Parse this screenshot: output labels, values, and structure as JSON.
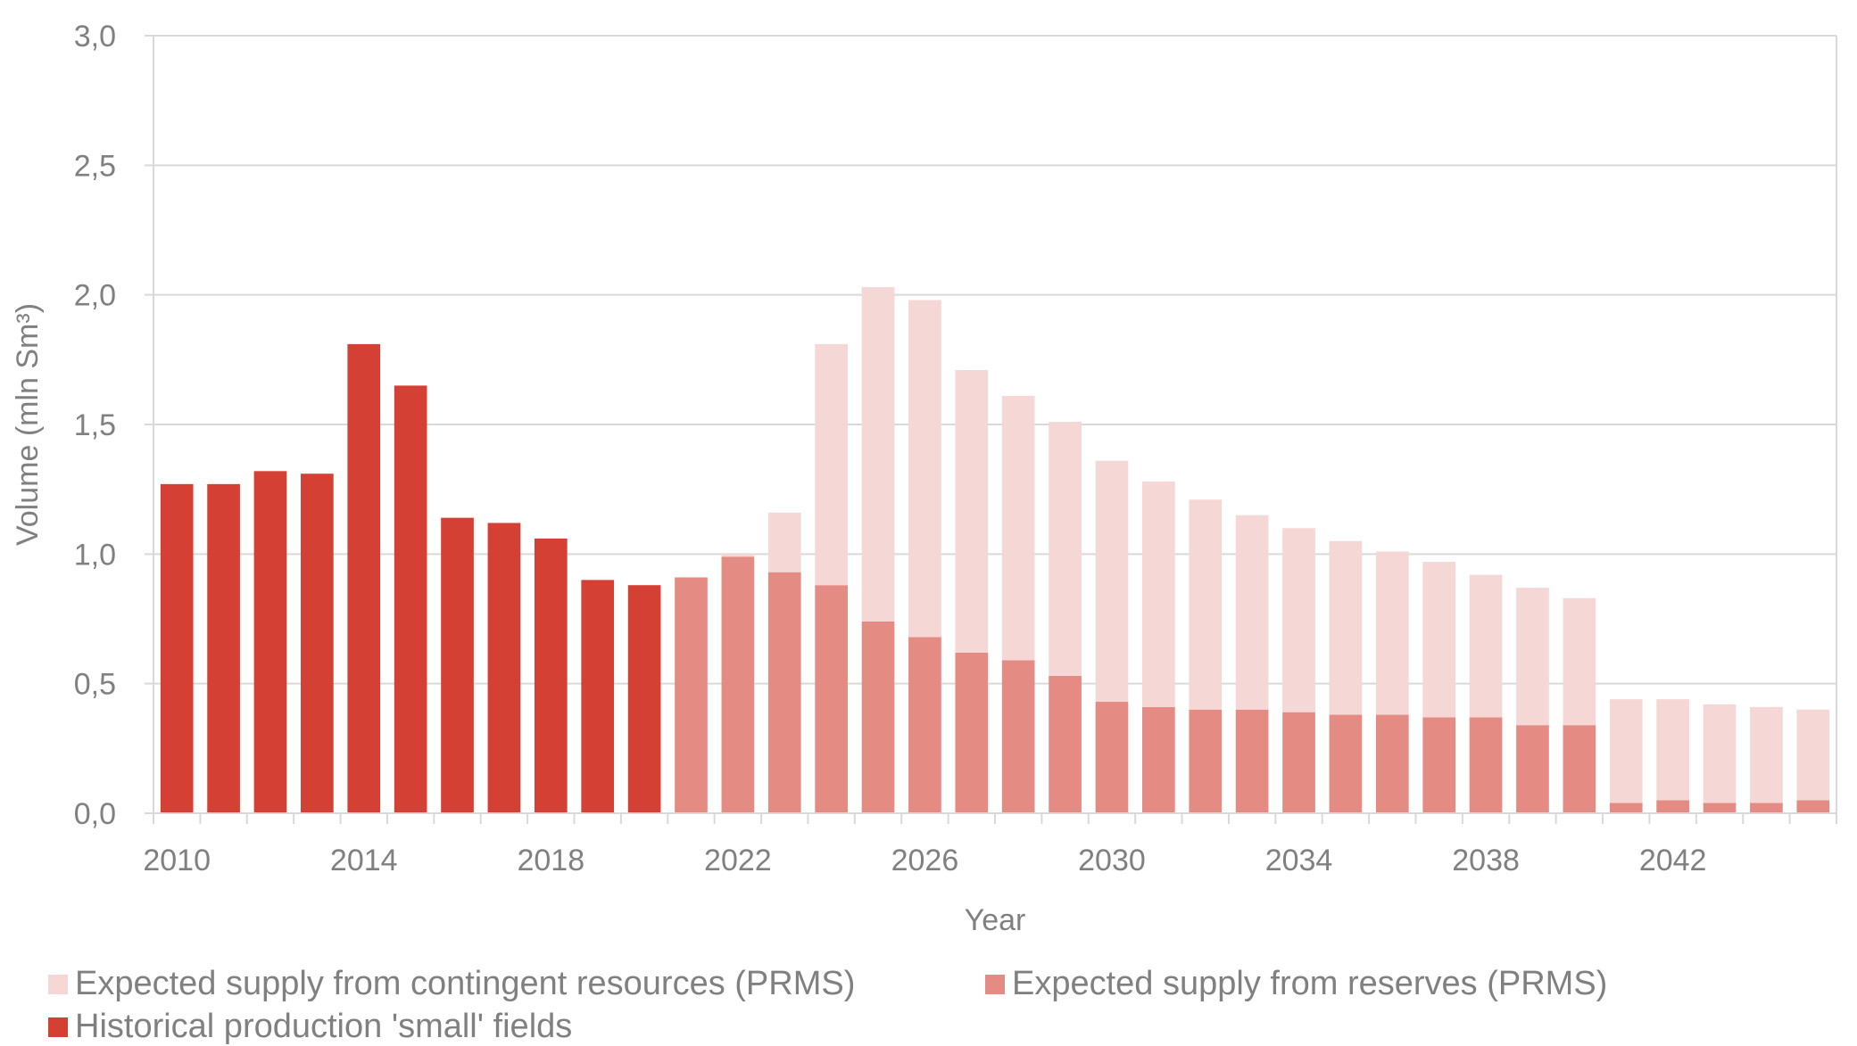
{
  "chart_data": {
    "type": "bar",
    "stacked": true,
    "title": "",
    "xlabel": "Year",
    "ylabel": "Volume (mln Sm³)",
    "ylim": [
      0,
      3.0
    ],
    "yticks": [
      "0,0",
      "0,5",
      "1,0",
      "1,5",
      "2,0",
      "2,5",
      "3,0"
    ],
    "ytick_values": [
      0,
      0.5,
      1.0,
      1.5,
      2.0,
      2.5,
      3.0
    ],
    "xticks": [
      "2010",
      "2014",
      "2018",
      "2022",
      "2026",
      "2030",
      "2034",
      "2038",
      "2042"
    ],
    "grid": true,
    "legend_position": "bottom",
    "categories": [
      "2010",
      "2011",
      "2012",
      "2013",
      "2014",
      "2015",
      "2016",
      "2017",
      "2018",
      "2019",
      "2020",
      "2021",
      "2022",
      "2023",
      "2024",
      "2025",
      "2026",
      "2027",
      "2028",
      "2029",
      "2030",
      "2031",
      "2032",
      "2033",
      "2034",
      "2035",
      "2036",
      "2037",
      "2038",
      "2039",
      "2040",
      "2041",
      "2042",
      "2043",
      "2044",
      "2045"
    ],
    "series": [
      {
        "name": "Historical production 'small' fields",
        "color": "#D44033",
        "values": [
          1.27,
          1.27,
          1.32,
          1.31,
          1.81,
          1.65,
          1.14,
          1.12,
          1.06,
          0.9,
          0.88,
          0,
          0,
          0,
          0,
          0,
          0,
          0,
          0,
          0,
          0,
          0,
          0,
          0,
          0,
          0,
          0,
          0,
          0,
          0,
          0,
          0,
          0,
          0,
          0,
          0
        ]
      },
      {
        "name": "Expected supply from reserves (PRMS)",
        "color": "#E48B83",
        "values": [
          0,
          0,
          0,
          0,
          0,
          0,
          0,
          0,
          0,
          0,
          0,
          0.91,
          0.99,
          0.93,
          0.88,
          0.74,
          0.68,
          0.62,
          0.59,
          0.53,
          0.43,
          0.41,
          0.4,
          0.4,
          0.39,
          0.38,
          0.38,
          0.37,
          0.37,
          0.34,
          0.34,
          0.04,
          0.05,
          0.04,
          0.04,
          0.05
        ]
      },
      {
        "name": "Expected supply from contingent resources (PRMS)",
        "color": "#F5D7D6",
        "values": [
          0,
          0,
          0,
          0,
          0,
          0,
          0,
          0,
          0,
          0,
          0,
          0,
          0.01,
          0.23,
          0.93,
          1.29,
          1.3,
          1.09,
          1.02,
          0.98,
          0.93,
          0.87,
          0.81,
          0.75,
          0.71,
          0.67,
          0.63,
          0.6,
          0.55,
          0.53,
          0.49,
          0.4,
          0.39,
          0.38,
          0.37,
          0.35
        ]
      }
    ],
    "legend": [
      {
        "label": "Expected supply from contingent resources (PRMS)",
        "color": "#F5D7D6"
      },
      {
        "label": "Expected supply from reserves (PRMS)",
        "color": "#E48B83"
      },
      {
        "label": "Historical production 'small' fields",
        "color": "#D44033"
      }
    ]
  }
}
